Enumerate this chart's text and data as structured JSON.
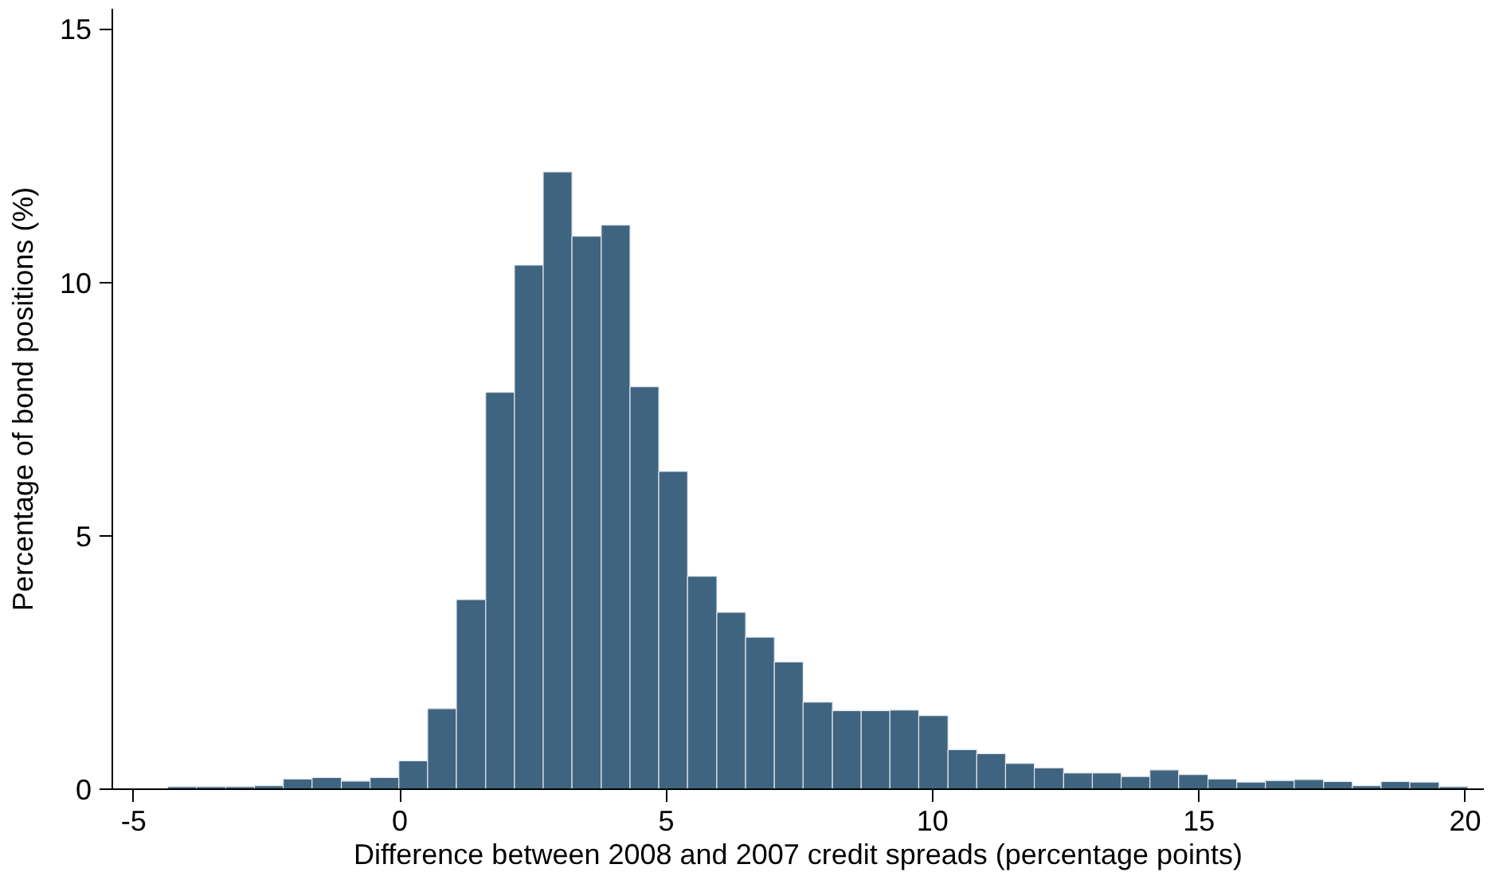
{
  "chart_data": {
    "type": "histogram",
    "xlabel": "Difference between 2008 and 2007 credit spreads (percentage points)",
    "ylabel": "Percentage of bond positions (%)",
    "bins": [
      -4.36,
      -3.82,
      -3.27,
      -2.73,
      -2.19,
      -1.65,
      -1.1,
      -0.56,
      -0.02,
      0.52,
      1.06,
      1.61,
      2.15,
      2.69,
      3.23,
      3.78,
      4.32,
      4.86,
      5.4,
      5.95,
      6.49,
      7.03,
      7.57,
      8.12,
      8.66,
      9.2,
      9.74,
      10.29,
      10.83,
      11.37,
      11.91,
      12.46,
      13.0,
      13.54,
      14.08,
      14.62,
      15.17,
      15.71,
      16.25,
      16.79,
      17.34,
      17.88,
      18.42,
      18.96,
      19.51,
      20.05
    ],
    "values": [
      0.05,
      0.05,
      0.05,
      0.07,
      0.2,
      0.23,
      0.16,
      0.23,
      0.56,
      1.59,
      3.74,
      7.83,
      10.34,
      12.18,
      10.91,
      11.13,
      7.94,
      6.27,
      4.2,
      3.49,
      3.0,
      2.51,
      1.72,
      1.55,
      1.55,
      1.56,
      1.45,
      0.78,
      0.7,
      0.51,
      0.42,
      0.32,
      0.32,
      0.25,
      0.38,
      0.29,
      0.2,
      0.14,
      0.17,
      0.19,
      0.15,
      0.07,
      0.15,
      0.14,
      0.05
    ],
    "color": "#3e6480",
    "xlim": [
      -5.4,
      20.35
    ],
    "ylim": [
      0,
      15.4
    ],
    "xticks": [
      -5,
      0,
      5,
      10,
      15,
      20
    ],
    "yticks": [
      0,
      5,
      10,
      15
    ],
    "grid": false
  }
}
